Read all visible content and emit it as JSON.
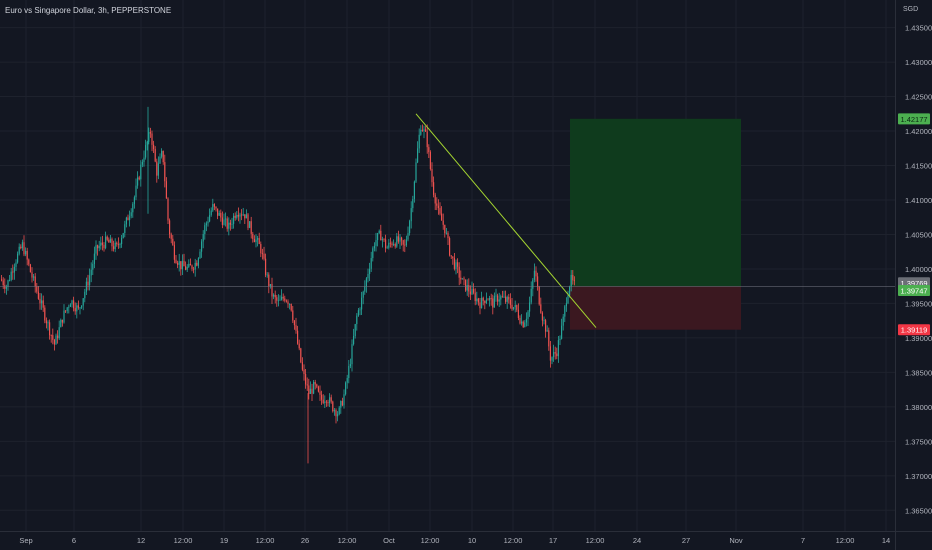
{
  "header": {
    "title": "Euro vs Singapore Dollar, 3h, PEPPERSTONE",
    "currency": "SGD"
  },
  "colors": {
    "background": "#131722",
    "grid": "#1e222d",
    "up": "#26a69a",
    "up_bright": "#43a047",
    "down": "#ef5350",
    "trendline": "#a5d631",
    "target_zone": "#0f3b1d",
    "stop_zone": "#3b1820",
    "target_tag": "#4caf50",
    "stop_tag": "#f23645",
    "price_tag": "#6b6e76",
    "axis_text": "#b2b5be"
  },
  "chart_data": {
    "type": "candlestick",
    "symbol": "EURSGD",
    "timeframe": "3h",
    "ylim": [
      1.362,
      1.439
    ],
    "y_ticks": [
      "1.43500",
      "1.43000",
      "1.42500",
      "1.42000",
      "1.41500",
      "1.41000",
      "1.40500",
      "1.40000",
      "1.39500",
      "1.39000",
      "1.38500",
      "1.38000",
      "1.37500",
      "1.37000",
      "1.36500"
    ],
    "y_tick_values": [
      1.435,
      1.43,
      1.425,
      1.42,
      1.415,
      1.41,
      1.405,
      1.4,
      1.395,
      1.39,
      1.385,
      1.38,
      1.375,
      1.37,
      1.365
    ],
    "x_ticks": [
      "Sep",
      "6",
      "12",
      "12:00",
      "19",
      "12:00",
      "26",
      "12:00",
      "Oct",
      "12:00",
      "10",
      "12:00",
      "17",
      "12:00",
      "24",
      "27",
      "Nov",
      "7",
      "12:00",
      "14"
    ],
    "price_path": [
      [
        0,
        1.3985
      ],
      [
        6,
        1.3975
      ],
      [
        14,
        1.401
      ],
      [
        22,
        1.4035
      ],
      [
        30,
        1.3995
      ],
      [
        38,
        1.396
      ],
      [
        46,
        1.3925
      ],
      [
        54,
        1.389
      ],
      [
        62,
        1.393
      ],
      [
        70,
        1.3955
      ],
      [
        78,
        1.394
      ],
      [
        88,
        1.3985
      ],
      [
        96,
        1.403
      ],
      [
        106,
        1.404
      ],
      [
        116,
        1.403
      ],
      [
        124,
        1.406
      ],
      [
        134,
        1.4105
      ],
      [
        142,
        1.416
      ],
      [
        150,
        1.42
      ],
      [
        156,
        1.414
      ],
      [
        162,
        1.417
      ],
      [
        168,
        1.406
      ],
      [
        174,
        1.402
      ],
      [
        180,
        1.4005
      ],
      [
        188,
        1.4
      ],
      [
        196,
        1.401
      ],
      [
        204,
        1.406
      ],
      [
        212,
        1.409
      ],
      [
        220,
        1.4075
      ],
      [
        228,
        1.406
      ],
      [
        236,
        1.4085
      ],
      [
        244,
        1.408
      ],
      [
        252,
        1.405
      ],
      [
        260,
        1.403
      ],
      [
        266,
        1.399
      ],
      [
        272,
        1.396
      ],
      [
        278,
        1.395
      ],
      [
        284,
        1.396
      ],
      [
        290,
        1.395
      ],
      [
        296,
        1.39
      ],
      [
        302,
        1.385
      ],
      [
        308,
        1.382
      ],
      [
        314,
        1.383
      ],
      [
        320,
        1.381
      ],
      [
        326,
        1.3815
      ],
      [
        332,
        1.38
      ],
      [
        338,
        1.379
      ],
      [
        344,
        1.382
      ],
      [
        350,
        1.387
      ],
      [
        356,
        1.393
      ],
      [
        362,
        1.396
      ],
      [
        368,
        1.4
      ],
      [
        374,
        1.404
      ],
      [
        380,
        1.405
      ],
      [
        386,
        1.403
      ],
      [
        392,
        1.404
      ],
      [
        398,
        1.404
      ],
      [
        404,
        1.403
      ],
      [
        410,
        1.408
      ],
      [
        416,
        1.416
      ],
      [
        420,
        1.421
      ],
      [
        426,
        1.419
      ],
      [
        432,
        1.412
      ],
      [
        438,
        1.408
      ],
      [
        444,
        1.406
      ],
      [
        450,
        1.402
      ],
      [
        456,
        1.4
      ],
      [
        462,
        1.398
      ],
      [
        468,
        1.397
      ],
      [
        474,
        1.396
      ],
      [
        480,
        1.395
      ],
      [
        486,
        1.396
      ],
      [
        492,
        1.395
      ],
      [
        498,
        1.396
      ],
      [
        504,
        1.3955
      ],
      [
        510,
        1.395
      ],
      [
        516,
        1.394
      ],
      [
        522,
        1.392
      ],
      [
        528,
        1.394
      ],
      [
        534,
        1.4
      ],
      [
        538,
        1.396
      ],
      [
        542,
        1.393
      ],
      [
        546,
        1.391
      ],
      [
        550,
        1.387
      ],
      [
        556,
        1.388
      ],
      [
        562,
        1.392
      ],
      [
        566,
        1.396
      ],
      [
        570,
        1.3985
      ],
      [
        574,
        1.3975
      ]
    ],
    "trendline": {
      "start": [
        416,
        1.4225
      ],
      "end": [
        596,
        1.3915
      ]
    },
    "position": {
      "type": "long",
      "entry": 1.39747,
      "target": 1.42177,
      "stop": 1.39119,
      "x_start": 570,
      "x_end": 741
    },
    "price_labels": {
      "target": "1.42177",
      "current": "1.39769",
      "entry": "1.39747",
      "stop": "1.39119"
    },
    "price_values": {
      "current": 1.39769
    }
  }
}
